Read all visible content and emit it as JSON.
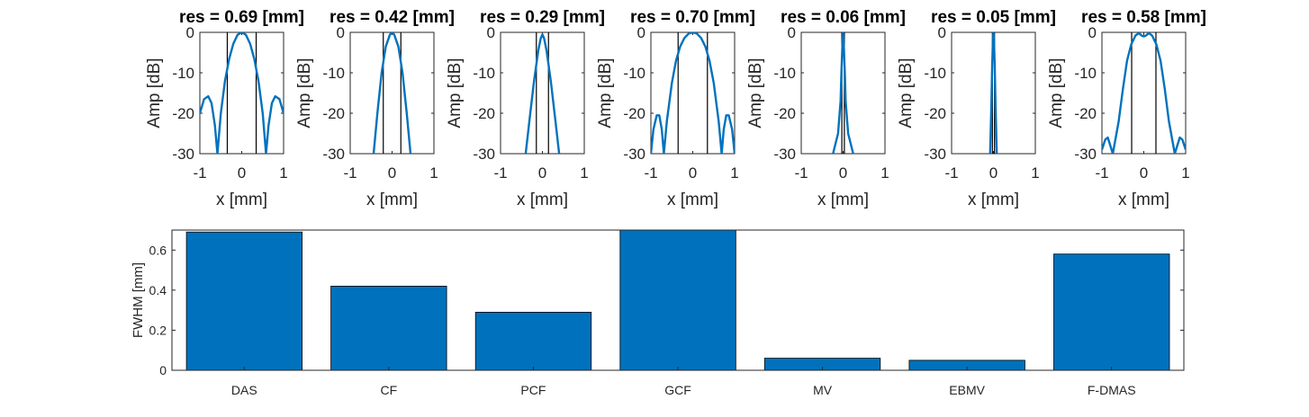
{
  "chart_data": [
    {
      "type": "line",
      "title": "res = 0.69 [mm]",
      "xlabel": "x [mm]",
      "ylabel": "Amp [dB]",
      "xlim": [
        -1,
        1
      ],
      "ylim": [
        -30,
        0
      ],
      "xticks": [
        "-1",
        "0",
        "1"
      ],
      "yticks": [
        "0",
        "-10",
        "-20",
        "-30"
      ],
      "fwhm": 0.69,
      "series": [
        {
          "x": [
            -1.0,
            -0.9,
            -0.8,
            -0.72,
            -0.64,
            -0.58,
            -0.5,
            -0.4,
            -0.3,
            -0.2,
            -0.1,
            0.0,
            0.1,
            0.2,
            0.3,
            0.4,
            0.5,
            0.58,
            0.64,
            0.72,
            0.8,
            0.9,
            1.0
          ],
          "y": [
            -20,
            -16.5,
            -15.8,
            -17.5,
            -23,
            -30,
            -20,
            -12,
            -6.5,
            -2.8,
            -0.6,
            0,
            -0.6,
            -2.8,
            -6.5,
            -12,
            -20,
            -30,
            -23,
            -17.5,
            -15.8,
            -16.5,
            -20
          ]
        }
      ]
    },
    {
      "type": "line",
      "title": "res = 0.42 [mm]",
      "xlabel": "x [mm]",
      "ylabel": "Amp [dB]",
      "xlim": [
        -1,
        1
      ],
      "ylim": [
        -30,
        0
      ],
      "xticks": [
        "-1",
        "0",
        "1"
      ],
      "yticks": [
        "0",
        "-10",
        "-20",
        "-30"
      ],
      "fwhm": 0.42,
      "series": [
        {
          "x": [
            -0.44,
            -0.35,
            -0.25,
            -0.15,
            -0.05,
            0.0,
            0.05,
            0.15,
            0.25,
            0.35,
            0.44
          ],
          "y": [
            -30,
            -20,
            -10,
            -3.5,
            -0.5,
            0,
            -0.5,
            -3.5,
            -10,
            -20,
            -30
          ]
        }
      ]
    },
    {
      "type": "line",
      "title": "res = 0.29 [mm]",
      "xlabel": "x [mm]",
      "ylabel": "Amp [dB]",
      "xlim": [
        -1,
        1
      ],
      "ylim": [
        -30,
        0
      ],
      "xticks": [
        "-1",
        "0",
        "1"
      ],
      "yticks": [
        "0",
        "-10",
        "-20",
        "-30"
      ],
      "fwhm": 0.29,
      "series": [
        {
          "x": [
            -0.4,
            -0.3,
            -0.2,
            -0.1,
            -0.04,
            0.0,
            0.04,
            0.1,
            0.2,
            0.3,
            0.4
          ],
          "y": [
            -30,
            -21,
            -12,
            -4.5,
            -1.5,
            -0.5,
            -1.5,
            -4.5,
            -12,
            -21,
            -30
          ]
        }
      ]
    },
    {
      "type": "line",
      "title": "res = 0.70 [mm]",
      "xlabel": "x [mm]",
      "ylabel": "Amp [dB]",
      "xlim": [
        -1,
        1
      ],
      "ylim": [
        -30,
        0
      ],
      "xticks": [
        "-1",
        "0",
        "1"
      ],
      "yticks": [
        "0",
        "-10",
        "-20",
        "-30"
      ],
      "fwhm": 0.7,
      "series": [
        {
          "x": [
            -1.0,
            -0.94,
            -0.86,
            -0.8,
            -0.74,
            -0.69,
            -0.62,
            -0.5,
            -0.4,
            -0.3,
            -0.2,
            -0.1,
            0.0,
            0.1,
            0.2,
            0.3,
            0.4,
            0.5,
            0.62,
            0.69,
            0.74,
            0.8,
            0.86,
            0.94,
            1.0
          ],
          "y": [
            -30,
            -24,
            -20.5,
            -20.5,
            -24,
            -30,
            -22,
            -12.5,
            -7,
            -3.5,
            -1.4,
            -0.3,
            0,
            -0.3,
            -1.4,
            -3.5,
            -7,
            -12.5,
            -22,
            -30,
            -24,
            -20.5,
            -20.5,
            -24,
            -30
          ]
        }
      ]
    },
    {
      "type": "line",
      "title": "res = 0.06 [mm]",
      "xlabel": "x [mm]",
      "ylabel": "Amp [dB]",
      "xlim": [
        -1,
        1
      ],
      "ylim": [
        -30,
        0
      ],
      "xticks": [
        "-1",
        "0",
        "1"
      ],
      "yticks": [
        "0",
        "-10",
        "-20",
        "-30"
      ],
      "fwhm": 0.06,
      "series": [
        {
          "x": [
            -0.24,
            -0.12,
            -0.06,
            -0.04,
            -0.02,
            0.0,
            0.02,
            0.04,
            0.06,
            0.12,
            0.24
          ],
          "y": [
            -30,
            -25,
            -17,
            -10,
            -4,
            0,
            -4,
            -10,
            -17,
            -25,
            -30
          ]
        }
      ]
    },
    {
      "type": "line",
      "title": "res = 0.05 [mm]",
      "xlabel": "x [mm]",
      "ylabel": "Amp [dB]",
      "xlim": [
        -1,
        1
      ],
      "ylim": [
        -30,
        0
      ],
      "xticks": [
        "-1",
        "0",
        "1"
      ],
      "yticks": [
        "0",
        "-10",
        "-20",
        "-30"
      ],
      "fwhm": 0.05,
      "series": [
        {
          "x": [
            -0.08,
            -0.05,
            -0.03,
            -0.01,
            0.0,
            0.01,
            0.03,
            0.05,
            0.08
          ],
          "y": [
            -30,
            -18,
            -8,
            -1.5,
            0,
            -1.5,
            -8,
            -18,
            -30
          ]
        }
      ]
    },
    {
      "type": "line",
      "title": "res = 0.58 [mm]",
      "xlabel": "x [mm]",
      "ylabel": "Amp [dB]",
      "xlim": [
        -1,
        1
      ],
      "ylim": [
        -30,
        0
      ],
      "xticks": [
        "-1",
        "0",
        "1"
      ],
      "yticks": [
        "0",
        "-10",
        "-20",
        "-30"
      ],
      "fwhm": 0.58,
      "series": [
        {
          "x": [
            -1.0,
            -0.92,
            -0.86,
            -0.8,
            -0.74,
            -0.6,
            -0.5,
            -0.4,
            -0.3,
            -0.2,
            -0.12,
            -0.05,
            0.0,
            0.05,
            0.12,
            0.2,
            0.3,
            0.4,
            0.5,
            0.6,
            0.74,
            0.8,
            0.86,
            0.92,
            1.0
          ],
          "y": [
            -29,
            -26.5,
            -26,
            -28,
            -30,
            -22,
            -14,
            -7,
            -3,
            -0.8,
            -0.2,
            -0.8,
            -1.0,
            -0.8,
            -0.2,
            -0.8,
            -3,
            -7,
            -14,
            -22,
            -30,
            -28,
            -26,
            -26.5,
            -29
          ]
        }
      ]
    },
    {
      "type": "bar",
      "categories": [
        "DAS",
        "CF",
        "PCF",
        "GCF",
        "MV",
        "EBMV",
        "F-DMAS"
      ],
      "values": [
        0.69,
        0.42,
        0.29,
        0.7,
        0.06,
        0.05,
        0.58
      ],
      "xlabel": "",
      "ylabel": "FWHM [mm]",
      "ylim": [
        0,
        0.7
      ],
      "yticks": [
        "0",
        "0.2",
        "0.4",
        "0.6"
      ]
    }
  ],
  "colors": {
    "line": "#0072BD",
    "bar": "#0072BD",
    "axis": "#262626",
    "marker": "#000000"
  }
}
